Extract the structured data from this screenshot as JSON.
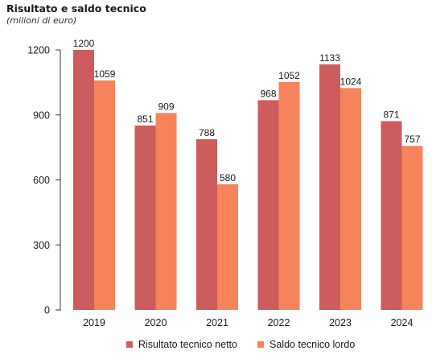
{
  "chart_data": {
    "type": "bar",
    "title": "Risultato e saldo tecnico",
    "subtitle": "(milioni di euro)",
    "categories": [
      "2019",
      "2020",
      "2021",
      "2022",
      "2023",
      "2024"
    ],
    "series": [
      {
        "name": "Risultato tecnico netto",
        "color": "#cd5c5c",
        "values": [
          1200,
          851,
          788,
          968,
          1133,
          871
        ]
      },
      {
        "name": "Saldo tecnico lordo",
        "color": "#f5845a",
        "values": [
          1059,
          909,
          580,
          1052,
          1024,
          757
        ]
      }
    ],
    "ylim": [
      0,
      1200
    ],
    "yticks": [
      0,
      300,
      600,
      900,
      1200
    ],
    "grid": false,
    "legend": "bottom-center",
    "data_labels": true
  }
}
